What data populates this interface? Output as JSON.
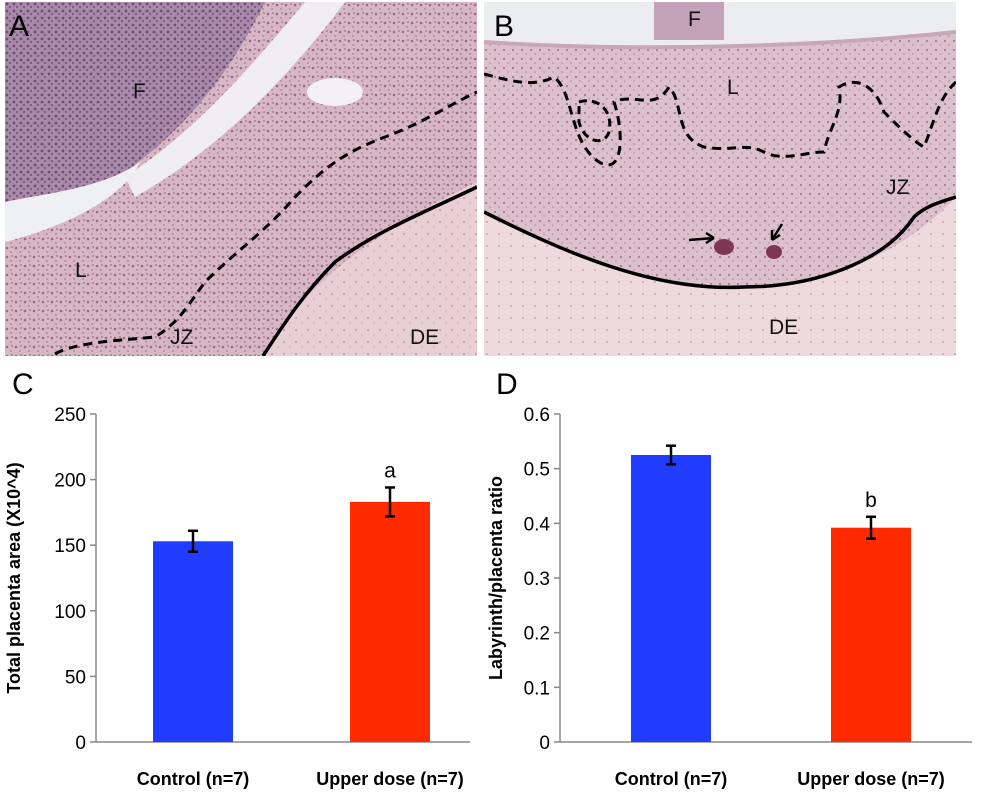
{
  "panels": {
    "a": {
      "letter": "A",
      "labels": {
        "f": "F",
        "l": "L",
        "jz": "JZ",
        "de": "DE"
      }
    },
    "b": {
      "letter": "B",
      "labels": {
        "f": "F",
        "l": "L",
        "jz": "JZ",
        "de": "DE"
      }
    },
    "c": {
      "letter": "C"
    },
    "d": {
      "letter": "D"
    }
  },
  "chart_data": [
    {
      "type": "bar",
      "panel": "C",
      "categories": [
        "Control (n=7)",
        "Upper dose (n=7)"
      ],
      "values": [
        153,
        183
      ],
      "errors": [
        8,
        11
      ],
      "colors": [
        "#1f3cff",
        "#ff2a00"
      ],
      "annotations": [
        "",
        "a"
      ],
      "title": "",
      "xlabel": "",
      "ylabel": "Total placenta area (X10^4)",
      "ylim": [
        0,
        250
      ],
      "yticks": [
        "0",
        "50",
        "100",
        "150",
        "200",
        "250"
      ],
      "grid": false
    },
    {
      "type": "bar",
      "panel": "D",
      "categories": [
        "Control (n=7)",
        "Upper dose (n=7)"
      ],
      "values": [
        0.525,
        0.392
      ],
      "errors": [
        0.017,
        0.02
      ],
      "colors": [
        "#1f3cff",
        "#ff2a00"
      ],
      "annotations": [
        "",
        "b"
      ],
      "title": "",
      "xlabel": "",
      "ylabel": "Labyrinth/placenta ratio",
      "ylim": [
        0,
        0.6
      ],
      "yticks": [
        "0",
        "0.1",
        "0.2",
        "0.3",
        "0.4",
        "0.5",
        "0.6"
      ],
      "grid": false
    }
  ]
}
